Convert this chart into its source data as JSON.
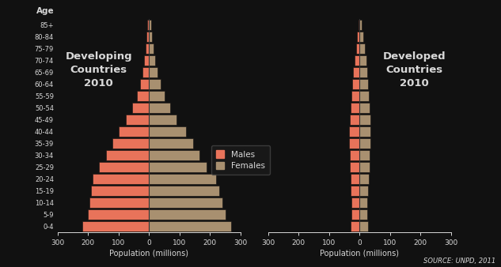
{
  "age_groups": [
    "0-4",
    "5-9",
    "10-14",
    "15-19",
    "20-24",
    "25-29",
    "30-34",
    "35-39",
    "40-44",
    "45-49",
    "50-54",
    "55-59",
    "60-64",
    "65-69",
    "70-74",
    "75-79",
    "80-84",
    "85+"
  ],
  "developing_males": [
    220,
    200,
    195,
    190,
    185,
    165,
    140,
    120,
    100,
    75,
    55,
    40,
    30,
    22,
    17,
    12,
    8,
    5
  ],
  "developing_females": [
    270,
    250,
    240,
    230,
    220,
    190,
    165,
    145,
    120,
    90,
    70,
    50,
    38,
    28,
    20,
    14,
    9,
    6
  ],
  "developed_males": [
    28,
    27,
    27,
    28,
    30,
    32,
    32,
    33,
    33,
    32,
    30,
    27,
    24,
    20,
    16,
    12,
    8,
    4
  ],
  "developed_females": [
    27,
    26,
    26,
    28,
    31,
    33,
    34,
    35,
    36,
    35,
    34,
    32,
    29,
    26,
    22,
    17,
    12,
    7
  ],
  "male_color": "#E8735A",
  "female_color": "#A89070",
  "background_color": "#111111",
  "text_color": "#D8D8D8",
  "bar_edge_color": "#111111",
  "title1": "Developing\nCountries\n2010",
  "title2": "Developed\nCountries\n2010",
  "xlabel": "Population (millions)",
  "age_label": "Age",
  "source_text": "SOURCE: UNPD, 2011",
  "xlim": 300,
  "xticks": [
    300,
    200,
    100,
    0,
    100,
    200,
    300
  ],
  "legend_labels": [
    "Males",
    "Females"
  ]
}
